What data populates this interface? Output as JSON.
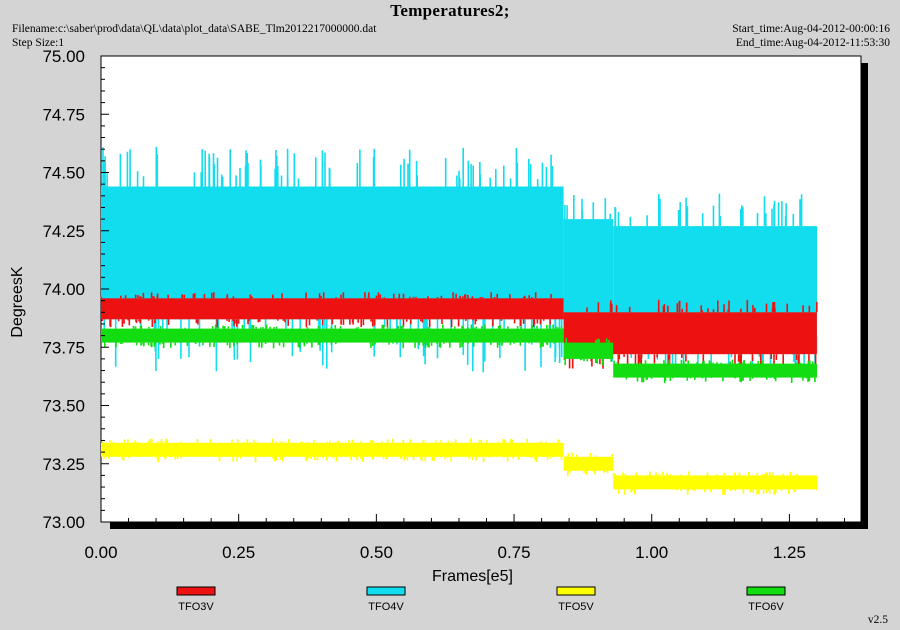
{
  "header": {
    "title": "Temperatures2;",
    "filename": "Filename:c:\\saber\\prod\\data\\QL\\data\\plot_data\\SABE_Tlm2012217000000.dat",
    "step_size": "Step Size:1",
    "start_time": "Start_time:Aug-04-2012-00:00:16",
    "end_time": "End_time:Aug-04-2012-11:53:30",
    "version": "v2.5"
  },
  "colors": {
    "TFO3V": "#ee1111",
    "TFO4V": "#11ddee",
    "TFO5V": "#ffff00",
    "TFO6V": "#11dd11"
  },
  "chart_data": {
    "type": "line",
    "title": "Temperatures2;",
    "xlabel": "Frames[e5]",
    "ylabel": "DegreesK",
    "xlim": [
      0.0,
      1.38
    ],
    "ylim": [
      73.0,
      75.0
    ],
    "x_ticks": [
      "0.00",
      "0.25",
      "0.50",
      "0.75",
      "1.00",
      "1.25"
    ],
    "y_ticks": [
      "73.00",
      "73.25",
      "73.50",
      "73.75",
      "74.00",
      "74.25",
      "74.50",
      "74.75",
      "75.00"
    ],
    "grid": false,
    "legend_position": "bottom",
    "series": [
      {
        "name": "TFO4V",
        "color": "#11ddee",
        "x_range": [
          0.0,
          1.3
        ],
        "segments": [
          {
            "x": [
              0.0,
              0.84
            ],
            "low": 73.87,
            "high": 74.44
          },
          {
            "x": [
              0.84,
              0.93
            ],
            "low": 73.85,
            "high": 74.3
          },
          {
            "x": [
              0.93,
              1.3
            ],
            "low": 73.8,
            "high": 74.27
          }
        ]
      },
      {
        "name": "TFO3V",
        "color": "#ee1111",
        "x_range": [
          0.0,
          1.3
        ],
        "segments": [
          {
            "x": [
              0.0,
              0.84
            ],
            "low": 73.87,
            "high": 73.96
          },
          {
            "x": [
              0.84,
              1.3
            ],
            "low": 73.72,
            "high": 73.9
          }
        ]
      },
      {
        "name": "TFO5V",
        "color": "#ffff00",
        "x_range": [
          0.0,
          1.3
        ],
        "segments": [
          {
            "x": [
              0.0,
              0.84
            ],
            "low": 73.28,
            "high": 73.34
          },
          {
            "x": [
              0.84,
              0.93
            ],
            "low": 73.22,
            "high": 73.28
          },
          {
            "x": [
              0.93,
              1.3
            ],
            "low": 73.14,
            "high": 73.2
          }
        ]
      },
      {
        "name": "TFO6V",
        "color": "#11dd11",
        "x_range": [
          0.0,
          1.3
        ],
        "segments": [
          {
            "x": [
              0.0,
              0.84
            ],
            "low": 73.77,
            "high": 73.83
          },
          {
            "x": [
              0.84,
              0.93
            ],
            "low": 73.7,
            "high": 73.77
          },
          {
            "x": [
              0.93,
              1.3
            ],
            "low": 73.62,
            "high": 73.68
          }
        ]
      }
    ]
  }
}
